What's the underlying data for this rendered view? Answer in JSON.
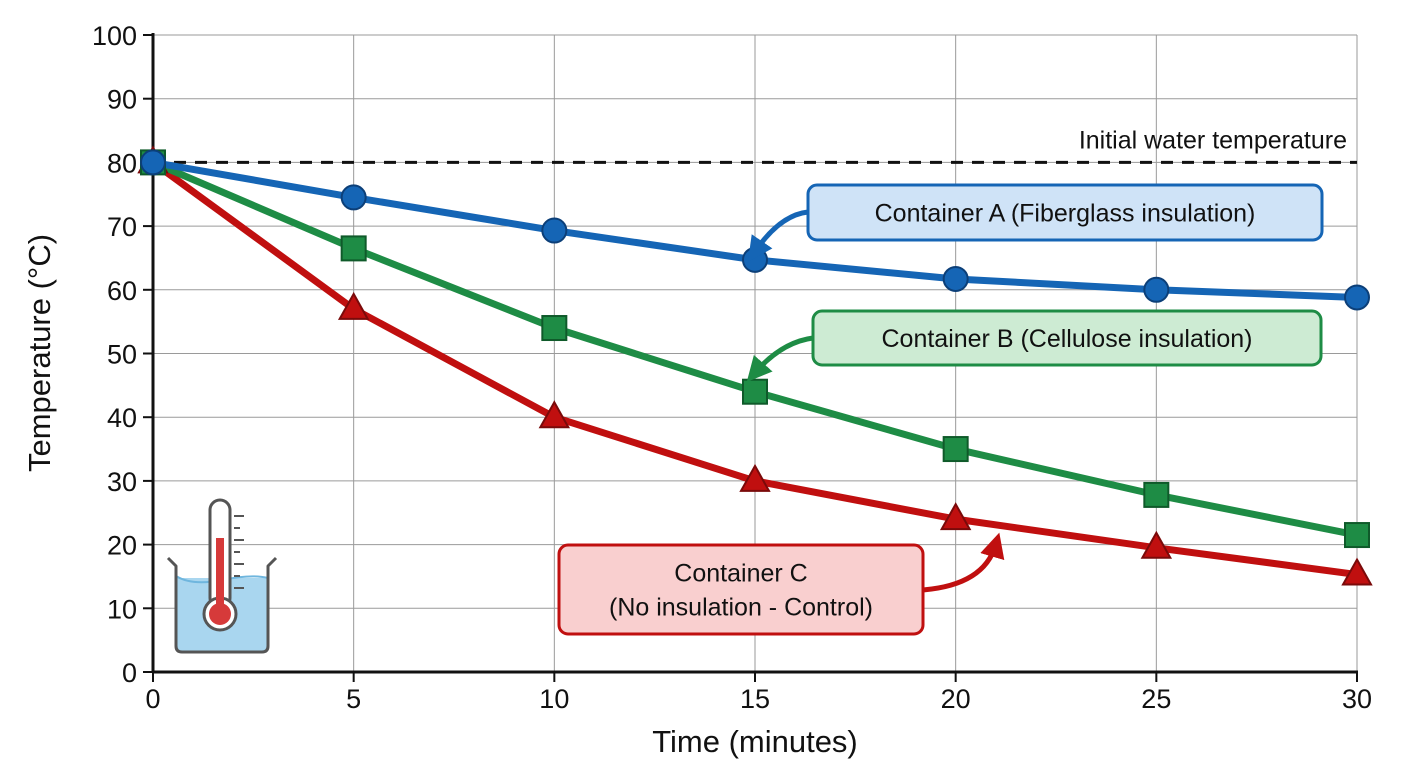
{
  "chart_data": {
    "type": "line",
    "title": "",
    "xlabel": "Time (minutes)",
    "ylabel": "Temperature (°C)",
    "xlim": [
      0,
      30
    ],
    "ylim": [
      0,
      100
    ],
    "x_ticks": [
      0,
      5,
      10,
      15,
      20,
      25,
      30
    ],
    "y_ticks": [
      0,
      10,
      20,
      30,
      40,
      50,
      60,
      70,
      80,
      90,
      100
    ],
    "grid": true,
    "x": [
      0,
      5,
      10,
      15,
      20,
      25,
      30
    ],
    "series": [
      {
        "name": "Container A (Fiberglass insulation)",
        "color": "#1565b5",
        "marker": "circle",
        "values": [
          80,
          74.5,
          69.3,
          64.7,
          61.7,
          60,
          58.8
        ]
      },
      {
        "name": "Container B (Cellulose insulation)",
        "color": "#1e8c45",
        "marker": "square",
        "values": [
          80,
          66.5,
          54,
          44,
          35,
          27.8,
          21.5
        ]
      },
      {
        "name": "Container C (No insulation - Control)",
        "color": "#c00f0f",
        "marker": "triangle",
        "values": [
          80,
          57,
          40,
          30,
          24,
          19.5,
          15.3
        ]
      }
    ],
    "reference_line": {
      "y": 80,
      "style": "dashed",
      "label": "Initial water temperature"
    },
    "annotations": [
      {
        "series": 0,
        "lines": [
          "Container A (Fiberglass insulation)"
        ],
        "fill": "#cfe3f7",
        "stroke": "#1565b5",
        "points_to_x": 15,
        "points_to_y": 66
      },
      {
        "series": 1,
        "lines": [
          "Container B (Cellulose insulation)"
        ],
        "fill": "#cdebd3",
        "stroke": "#1e8c45",
        "points_to_x": 15,
        "points_to_y": 47
      },
      {
        "series": 2,
        "lines": [
          "Container C",
          "(No insulation - Control)"
        ],
        "fill": "#f9cfcf",
        "stroke": "#c00f0f",
        "points_to_x": 21,
        "points_to_y": 20
      }
    ],
    "icon": "thermometer-in-beaker-icon"
  }
}
